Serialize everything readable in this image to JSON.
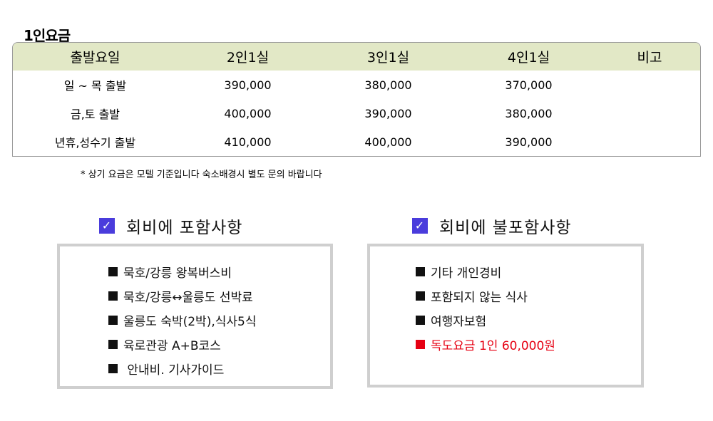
{
  "title": "1인요금",
  "table": {
    "headers": [
      "출발요일",
      "2인1실",
      "3인1실",
      "4인1실",
      "비고"
    ],
    "rows": [
      [
        "일 ~ 목 출발",
        "390,000",
        "380,000",
        "370,000",
        ""
      ],
      [
        "금,토 출발",
        "400,000",
        "390,000",
        "380,000",
        ""
      ],
      [
        "년휴,성수기 출발",
        "410,000",
        "400,000",
        "390,000",
        ""
      ]
    ]
  },
  "footnote": "* 상기 요금은 모텔 기준입니다   숙소배경시 별도 문의 바랍니다",
  "included": {
    "check_icon": "✓",
    "heading": "회비에 포함사항",
    "items": [
      "묵호/강릉 왕복버스비",
      "묵호/강릉↔울릉도 선박료",
      "울릉도 숙박(2박),식사5식",
      "육로관광 A+B코스",
      " 안내비. 기사가이드"
    ]
  },
  "excluded": {
    "check_icon": "✓",
    "heading": "회비에 불포함사항",
    "items": [
      "기타 개인경비",
      "포함되지 않는 식사",
      "여행자보험",
      "독도요금 1인 60,000원"
    ]
  },
  "colors": {
    "header_bg": "#e2e8c6",
    "check_bg": "#4a3cdc",
    "highlight": "#e60012",
    "panel_border": "#cfcfcf"
  }
}
